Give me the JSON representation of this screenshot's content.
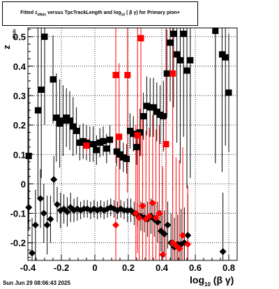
{
  "chart_data": {
    "type": "scatter",
    "title_parts": {
      "pre": "Fitted  z",
      "sub": "dNdx",
      "mid": "  versus TpcTrackLength and log",
      "sub2": "10",
      "post": " ( β γ) for Primary pion+"
    },
    "ylabel": "z",
    "ylabel_sub": "dNdx",
    "xlabel": "log",
    "xlabel_sub": "10",
    "xlabel_post": " (β γ)",
    "date": "Sun Jun 29 08:06:43 2025",
    "xlim": [
      -0.4,
      0.85
    ],
    "ylim": [
      -0.26,
      0.53
    ],
    "x_ticks": [
      "-0.4",
      "-0.2",
      "0",
      "0.2",
      "0.4",
      "0.6",
      "0.8"
    ],
    "x_tick_values": [
      -0.4,
      -0.2,
      0,
      0.2,
      0.4,
      0.6,
      0.8
    ],
    "y_ticks": [
      "-0.2",
      "-0.1",
      "0",
      "0.1",
      "0.2",
      "0.3",
      "0.4",
      "0.5"
    ],
    "y_tick_values": [
      -0.2,
      -0.1,
      0,
      0.1,
      0.2,
      0.3,
      0.4,
      0.5
    ],
    "grid": true,
    "colors": {
      "black": "#000000",
      "red": "#ff0000"
    },
    "series": [
      {
        "marker": "square",
        "color": "#000000",
        "points": [
          {
            "x": -0.395,
            "y": 0.095,
            "err": 0.23
          },
          {
            "x": -0.34,
            "y": 0.25,
            "err": 0.3
          },
          {
            "x": -0.32,
            "y": 0.32,
            "err": 0.3
          },
          {
            "x": -0.3,
            "y": 0.5,
            "err": 0.3
          },
          {
            "x": -0.25,
            "y": 0.355,
            "err": 0.15
          },
          {
            "x": -0.23,
            "y": 0.225,
            "err": 0.15
          },
          {
            "x": -0.21,
            "y": 0.205,
            "err": 0.15
          },
          {
            "x": -0.19,
            "y": 0.215,
            "err": 0.12
          },
          {
            "x": -0.17,
            "y": 0.225,
            "err": 0.1
          },
          {
            "x": -0.15,
            "y": 0.215,
            "err": 0.1
          },
          {
            "x": -0.13,
            "y": 0.195,
            "err": 0.1
          },
          {
            "x": -0.11,
            "y": 0.18,
            "err": 0.08
          },
          {
            "x": -0.09,
            "y": 0.14,
            "err": 0.06
          },
          {
            "x": -0.07,
            "y": 0.145,
            "err": 0.06
          },
          {
            "x": -0.05,
            "y": 0.14,
            "err": 0.06
          },
          {
            "x": -0.03,
            "y": 0.135,
            "err": 0.06
          },
          {
            "x": -0.01,
            "y": 0.135,
            "err": 0.06
          },
          {
            "x": 0.01,
            "y": 0.115,
            "err": 0.05
          },
          {
            "x": 0.03,
            "y": 0.14,
            "err": 0.05
          },
          {
            "x": 0.05,
            "y": 0.145,
            "err": 0.05
          },
          {
            "x": 0.07,
            "y": 0.12,
            "err": 0.05
          },
          {
            "x": 0.09,
            "y": 0.15,
            "err": 0.05
          },
          {
            "x": 0.13,
            "y": 0.11,
            "err": 0.05
          },
          {
            "x": 0.15,
            "y": 0.1,
            "err": 0.05
          },
          {
            "x": 0.17,
            "y": 0.09,
            "err": 0.05
          },
          {
            "x": 0.19,
            "y": 0.085,
            "err": 0.05
          },
          {
            "x": 0.21,
            "y": 0.18,
            "err": 0.06
          },
          {
            "x": 0.23,
            "y": 0.17,
            "err": 0.06
          },
          {
            "x": 0.25,
            "y": 0.125,
            "err": 0.06
          },
          {
            "x": 0.27,
            "y": 0.175,
            "err": 0.08
          },
          {
            "x": 0.29,
            "y": 0.23,
            "err": 0.08
          },
          {
            "x": 0.31,
            "y": 0.265,
            "err": 0.1
          },
          {
            "x": 0.33,
            "y": 0.26,
            "err": 0.1
          },
          {
            "x": 0.35,
            "y": 0.26,
            "err": 0.1
          },
          {
            "x": 0.37,
            "y": 0.245,
            "err": 0.1
          },
          {
            "x": 0.39,
            "y": 0.235,
            "err": 0.1
          },
          {
            "x": 0.41,
            "y": 0.23,
            "err": 0.12
          },
          {
            "x": 0.43,
            "y": 0.375,
            "err": 0.15
          },
          {
            "x": 0.45,
            "y": 0.48,
            "err": 0.2
          },
          {
            "x": 0.47,
            "y": 0.51,
            "err": 0.25
          },
          {
            "x": 0.49,
            "y": 0.44,
            "err": 0.3
          },
          {
            "x": 0.51,
            "y": 0.42,
            "err": 0.35
          },
          {
            "x": 0.53,
            "y": 0.51,
            "err": 0.35
          },
          {
            "x": 0.55,
            "y": 0.385,
            "err": 0.4
          },
          {
            "x": 0.57,
            "y": 0.42,
            "err": 0.4
          },
          {
            "x": 0.72,
            "y": 0.52,
            "err": 0.45
          },
          {
            "x": 0.76,
            "y": 0.44,
            "err": 0.4
          },
          {
            "x": 0.78,
            "y": 0.43,
            "err": 0.3
          },
          {
            "x": 0.8,
            "y": 0.31,
            "err": 0.2
          }
        ]
      },
      {
        "marker": "diamond",
        "color": "#000000",
        "points": [
          {
            "x": -0.395,
            "y": -0.08,
            "err": 0.08
          },
          {
            "x": -0.375,
            "y": -0.235,
            "err": 0.12
          },
          {
            "x": -0.355,
            "y": -0.14,
            "err": 0.12
          },
          {
            "x": -0.325,
            "y": -0.05,
            "err": 0.1
          },
          {
            "x": -0.305,
            "y": -0.1,
            "err": 0.1
          },
          {
            "x": -0.285,
            "y": -0.14,
            "err": 0.1
          },
          {
            "x": -0.265,
            "y": -0.12,
            "err": 0.08
          },
          {
            "x": -0.245,
            "y": 0.015,
            "err": 0.08
          },
          {
            "x": -0.225,
            "y": -0.07,
            "err": 0.06
          },
          {
            "x": -0.205,
            "y": -0.09,
            "err": 0.06
          },
          {
            "x": -0.185,
            "y": -0.085,
            "err": 0.05
          },
          {
            "x": -0.165,
            "y": -0.095,
            "err": 0.05
          },
          {
            "x": -0.145,
            "y": -0.08,
            "err": 0.05
          },
          {
            "x": -0.125,
            "y": -0.09,
            "err": 0.04
          },
          {
            "x": -0.105,
            "y": -0.085,
            "err": 0.04
          },
          {
            "x": -0.085,
            "y": -0.09,
            "err": 0.03
          },
          {
            "x": -0.065,
            "y": -0.085,
            "err": 0.03
          },
          {
            "x": -0.045,
            "y": -0.085,
            "err": 0.03
          },
          {
            "x": -0.025,
            "y": -0.09,
            "err": 0.03
          },
          {
            "x": -0.005,
            "y": -0.085,
            "err": 0.03
          },
          {
            "x": 0.015,
            "y": -0.09,
            "err": 0.03
          },
          {
            "x": 0.035,
            "y": -0.085,
            "err": 0.03
          },
          {
            "x": 0.055,
            "y": -0.09,
            "err": 0.03
          },
          {
            "x": 0.075,
            "y": -0.085,
            "err": 0.03
          },
          {
            "x": 0.095,
            "y": -0.08,
            "err": 0.03
          },
          {
            "x": 0.115,
            "y": -0.085,
            "err": 0.03
          },
          {
            "x": 0.135,
            "y": -0.09,
            "err": 0.03
          },
          {
            "x": 0.155,
            "y": -0.085,
            "err": 0.03
          },
          {
            "x": 0.175,
            "y": -0.09,
            "err": 0.03
          },
          {
            "x": 0.195,
            "y": -0.09,
            "err": 0.04
          },
          {
            "x": 0.215,
            "y": -0.09,
            "err": 0.04
          },
          {
            "x": 0.235,
            "y": -0.1,
            "err": 0.04
          },
          {
            "x": 0.255,
            "y": -0.105,
            "err": 0.04
          },
          {
            "x": 0.275,
            "y": -0.11,
            "err": 0.05
          },
          {
            "x": 0.295,
            "y": -0.115,
            "err": 0.05
          },
          {
            "x": 0.315,
            "y": -0.12,
            "err": 0.06
          },
          {
            "x": 0.335,
            "y": -0.11,
            "err": 0.06
          },
          {
            "x": 0.355,
            "y": -0.12,
            "err": 0.06
          },
          {
            "x": 0.375,
            "y": -0.13,
            "err": 0.07
          },
          {
            "x": 0.395,
            "y": -0.16,
            "err": 0.07
          },
          {
            "x": 0.415,
            "y": -0.17,
            "err": 0.08
          },
          {
            "x": 0.435,
            "y": -0.14,
            "err": 0.08
          },
          {
            "x": 0.455,
            "y": -0.2,
            "err": 0.1
          },
          {
            "x": 0.475,
            "y": -0.215,
            "err": 0.1
          },
          {
            "x": 0.495,
            "y": -0.205,
            "err": 0.1
          },
          {
            "x": 0.515,
            "y": -0.205,
            "err": 0.12
          },
          {
            "x": 0.535,
            "y": -0.2,
            "err": 0.12
          },
          {
            "x": 0.555,
            "y": -0.175,
            "err": 0.14
          },
          {
            "x": 0.765,
            "y": -0.23,
            "err": 0.2
          }
        ]
      },
      {
        "marker": "square",
        "color": "#ff0000",
        "points": [
          {
            "x": -0.05,
            "y": 0.13,
            "err": 0.03
          },
          {
            "x": 0.125,
            "y": 0.37,
            "err": 0.3
          },
          {
            "x": 0.145,
            "y": 0.16,
            "err": 0.25
          },
          {
            "x": 0.195,
            "y": 0.37,
            "err": 0.4
          },
          {
            "x": 0.255,
            "y": 0.165,
            "err": 0.4
          },
          {
            "x": 0.275,
            "y": 0.495,
            "err": 0.4
          },
          {
            "x": 0.425,
            "y": 0.135,
            "err": 0.4
          },
          {
            "x": 0.465,
            "y": 0.375,
            "err": 0.4
          }
        ]
      },
      {
        "marker": "diamond",
        "color": "#ff0000",
        "points": [
          {
            "x": 0.125,
            "y": -0.14,
            "err": 0.2
          },
          {
            "x": 0.245,
            "y": -0.1,
            "err": 0.3
          },
          {
            "x": 0.265,
            "y": -0.115,
            "err": 0.3
          },
          {
            "x": 0.285,
            "y": -0.075,
            "err": 0.3
          },
          {
            "x": 0.305,
            "y": -0.12,
            "err": 0.3
          },
          {
            "x": 0.325,
            "y": -0.11,
            "err": 0.3
          },
          {
            "x": 0.345,
            "y": -0.065,
            "err": 0.3
          },
          {
            "x": 0.365,
            "y": -0.115,
            "err": 0.3
          },
          {
            "x": 0.385,
            "y": -0.1,
            "err": 0.3
          },
          {
            "x": 0.405,
            "y": -0.24,
            "err": 0.3
          },
          {
            "x": 0.465,
            "y": -0.2,
            "err": 0.3
          },
          {
            "x": 0.485,
            "y": -0.21,
            "err": 0.3
          },
          {
            "x": 0.505,
            "y": -0.22,
            "err": 0.3
          },
          {
            "x": 0.525,
            "y": -0.175,
            "err": 0.3
          },
          {
            "x": 0.555,
            "y": -0.205,
            "err": 0.2
          }
        ]
      }
    ]
  }
}
